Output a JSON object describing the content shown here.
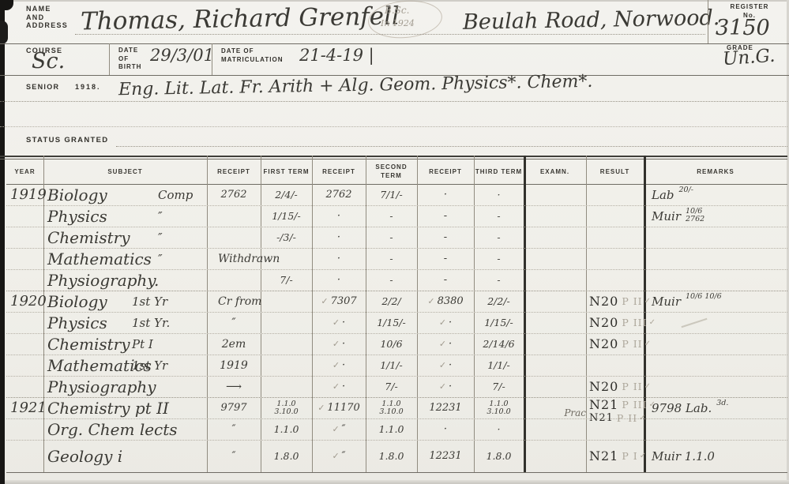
{
  "header": {
    "name_label_lines": [
      "NAME",
      "AND",
      "ADDRESS"
    ],
    "name": "Thomas, Richard Grenfell",
    "degree_note_line1": "B.Sc.",
    "degree_note_line2": "In 1924",
    "address": "Beulah Road, Norwood.",
    "register_label_line1": "REGISTER",
    "register_label_line2": "No.",
    "register_no": "3150",
    "course_label": "COURSE",
    "course": "Sc.",
    "dob_label_lines": [
      "DATE",
      "OF",
      "BIRTH"
    ],
    "dob": "29/3/01",
    "matric_label_lines": [
      "DATE OF",
      "MATRICULATION"
    ],
    "matric": "21-4-19 |",
    "grade_label": "GRADE",
    "grade": "Un.G."
  },
  "senior": {
    "label": "SENIOR",
    "year": "1918.",
    "subjects": "Eng. Lit. Lat. Fr. Arith + Alg. Geom. Physics*. Chem*."
  },
  "status": {
    "label": "STATUS GRANTED"
  },
  "table": {
    "headers": [
      "YEAR",
      "SUBJECT",
      "RECEIPT",
      "FIRST TERM",
      "RECEIPT",
      "SECOND TERM",
      "RECEIPT",
      "THIRD TERM",
      "EXAMN.",
      "RESULT",
      "REMARKS"
    ],
    "rows": [
      {
        "year": "1919",
        "subject": "Biology",
        "sub2": "Comp",
        "group": "y1919",
        "r1": "2762",
        "r1_pencil": false,
        "t1": "2/4/-",
        "t1b": "",
        "r2": "2762",
        "r2_check": false,
        "t2": "7/1/-",
        "t2b": "",
        "r3": "·",
        "r3_check": false,
        "t3": "·",
        "t3b": "",
        "exam2": "",
        "result": "",
        "rgrade": "",
        "rcheck": false,
        "result2": "",
        "rgrade2": "",
        "rcheck2": false,
        "remark": "Lab",
        "remark_sup": "20/-",
        "remark_sub": "",
        "remark_pencil": false
      },
      {
        "year": "",
        "subject": "Physics",
        "sub2": "″",
        "group": "y1919",
        "r1": "",
        "r1_pencil": false,
        "t1": "1/15/-",
        "t1b": "",
        "r2": "·",
        "r2_check": false,
        "t2": "-",
        "t2b": "",
        "r3": "-",
        "r3_check": false,
        "t3": "-",
        "t3b": "",
        "exam2": "",
        "result": "",
        "rgrade": "",
        "rcheck": false,
        "result2": "",
        "rgrade2": "",
        "rcheck2": false,
        "remark": "Muir",
        "remark_sup": "10/6",
        "remark_sub": "2762",
        "remark_pencil": false
      },
      {
        "year": "",
        "subject": "Chemistry",
        "sub2": "″",
        "group": "y1919",
        "r1": "",
        "r1_pencil": false,
        "t1": "-/3/-",
        "t1b": "",
        "r2": "·",
        "r2_check": false,
        "t2": "-",
        "t2b": "",
        "r3": "-",
        "r3_check": false,
        "t3": "-",
        "t3b": "",
        "exam2": "",
        "result": "",
        "rgrade": "",
        "rcheck": false,
        "result2": "",
        "rgrade2": "",
        "rcheck2": false,
        "remark": "",
        "remark_sup": "",
        "remark_sub": "",
        "remark_pencil": false
      },
      {
        "year": "",
        "subject": "Mathematics",
        "sub2": "″",
        "group": "y1919",
        "r1": "Withdrawn",
        "r1_pencil": true,
        "t1": "",
        "t1b": "",
        "r2": "·",
        "r2_check": false,
        "t2": "-",
        "t2b": "",
        "r3": "-",
        "r3_check": false,
        "t3": "-",
        "t3b": "",
        "exam2": "",
        "result": "",
        "rgrade": "",
        "rcheck": false,
        "result2": "",
        "rgrade2": "",
        "rcheck2": false,
        "remark": "",
        "remark_sup": "",
        "remark_sub": "",
        "remark_pencil": false
      },
      {
        "year": "",
        "subject": "Physiography.",
        "sub2": "",
        "group": "y1919",
        "r1": "",
        "r1_pencil": false,
        "t1": "7/-",
        "t1b": "",
        "r2": "·",
        "r2_check": false,
        "t2": "-",
        "t2b": "",
        "r3": "-",
        "r3_check": false,
        "t3": "-",
        "t3b": "",
        "exam2": "",
        "result": "",
        "rgrade": "",
        "rcheck": false,
        "result2": "",
        "rgrade2": "",
        "rcheck2": false,
        "remark": "",
        "remark_sup": "",
        "remark_sub": "",
        "remark_pencil": false
      },
      {
        "year": "1920",
        "subject": "Biology",
        "sub2": "1st Yr",
        "group": "y1920",
        "r1": "Cr from",
        "r1_pencil": true,
        "t1": "",
        "t1b": "",
        "r2": "7307",
        "r2_check": true,
        "t2": "2/2/",
        "t2b": "",
        "r3": "8380",
        "r3_check": true,
        "t3": "2/2/-",
        "t3b": "",
        "exam2": "",
        "result": "N20",
        "rgrade": "P II",
        "rcheck": true,
        "result2": "",
        "rgrade2": "",
        "rcheck2": false,
        "remark": "Muir",
        "remark_sup": "10/6 10/6",
        "remark_sub": "",
        "remark_pencil": false
      },
      {
        "year": "",
        "subject": "Physics",
        "sub2": "1st Yr.",
        "group": "y1920",
        "r1": "″",
        "r1_pencil": true,
        "t1": "",
        "t1b": "",
        "r2": "·",
        "r2_check": true,
        "t2": "1/15/-",
        "t2b": "",
        "r3": "·",
        "r3_check": true,
        "t3": "1/15/-",
        "t3b": "",
        "exam2": "",
        "result": "N20",
        "rgrade": "P III",
        "rcheck": true,
        "result2": "",
        "rgrade2": "",
        "rcheck2": false,
        "remark": "",
        "remark_sup": "",
        "remark_sub": "",
        "remark_pencil": false
      },
      {
        "year": "",
        "subject": "Chemistry",
        "sub2": "Pt I",
        "group": "y1920",
        "r1": "2em",
        "r1_pencil": true,
        "t1": "",
        "t1b": "",
        "r2": "·",
        "r2_check": true,
        "t2": "10/6",
        "t2b": "",
        "r3": "·",
        "r3_check": true,
        "t3": "2/14/6",
        "t3b": "",
        "exam2": "",
        "result": "N20",
        "rgrade": "P II",
        "rcheck": true,
        "result2": "",
        "rgrade2": "",
        "rcheck2": false,
        "remark": "",
        "remark_sup": "",
        "remark_sub": "",
        "remark_pencil": false
      },
      {
        "year": "",
        "subject": "Mathematics",
        "sub2": "1st Yr",
        "group": "y1920",
        "r1": "1919",
        "r1_pencil": true,
        "t1": "",
        "t1b": "",
        "r2": "·",
        "r2_check": true,
        "t2": "1/1/-",
        "t2b": "",
        "r3": "·",
        "r3_check": true,
        "t3": "1/1/-",
        "t3b": "",
        "exam2": "",
        "result": "",
        "rgrade": "",
        "rcheck": false,
        "result2": "",
        "rgrade2": "",
        "rcheck2": false,
        "remark": "",
        "remark_sup": "",
        "remark_sub": "",
        "remark_pencil": false
      },
      {
        "year": "",
        "subject": "Physiography",
        "sub2": "",
        "group": "y1920",
        "r1": "⟶",
        "r1_pencil": true,
        "t1": "",
        "t1b": "",
        "r2": "·",
        "r2_check": true,
        "t2": "7/-",
        "t2b": "",
        "r3": "·",
        "r3_check": true,
        "t3": "7/-",
        "t3b": "",
        "exam2": "",
        "result": "N20",
        "rgrade": "P II",
        "rcheck": true,
        "result2": "",
        "rgrade2": "",
        "rcheck2": false,
        "remark": "",
        "remark_sup": "",
        "remark_sub": "",
        "remark_pencil": false
      },
      {
        "year": "1921",
        "subject": "Chemistry pt II",
        "sub2": "",
        "group": "y1921",
        "r1": "9797",
        "r1_pencil": false,
        "t1": "1.1.0",
        "t1b": "3.10.0",
        "r2": "11170",
        "r2_check": true,
        "t2": "1.1.0",
        "t2b": "3.10.0",
        "r3": "12231",
        "r3_check": false,
        "t3": "1.1.0",
        "t3b": "3.10.0",
        "exam2": "Prac",
        "result": "N21",
        "rgrade": "P III",
        "rcheck": true,
        "result2": "N21",
        "rgrade2": "P II",
        "rcheck2": true,
        "remark": "9798 Lab.",
        "remark_sup": "3d.",
        "remark_sub": "",
        "remark_pencil": true
      },
      {
        "year": "",
        "subject": "Org. Chem lects",
        "sub2": "",
        "group": "y1921",
        "r1": "″",
        "r1_pencil": false,
        "t1": "1.1.0",
        "t1b": "",
        "r2": "″",
        "r2_check": true,
        "t2": "1.1.0",
        "t2b": "",
        "r3": "·",
        "r3_check": false,
        "t3": "·",
        "t3b": "",
        "exam2": "",
        "result": "",
        "rgrade": "",
        "rcheck": false,
        "result2": "",
        "rgrade2": "",
        "rcheck2": false,
        "remark": "",
        "remark_sup": "",
        "remark_sub": "",
        "remark_pencil": false
      },
      {
        "year": "",
        "subject": "Geology i",
        "sub2": "",
        "group": "y1921",
        "r1": "″",
        "r1_pencil": false,
        "t1": "1.8.0",
        "t1b": "",
        "r2": "″",
        "r2_check": true,
        "t2": "1.8.0",
        "t2b": "",
        "r3": "12231",
        "r3_check": false,
        "t3": "1.8.0",
        "t3b": "",
        "exam2": "",
        "result": "N21",
        "rgrade": "P I",
        "rcheck": true,
        "result2": "",
        "rgrade2": "",
        "rcheck2": false,
        "remark": "Muir 1.1.0",
        "remark_sup": "",
        "remark_sub": "",
        "remark_pencil": false
      }
    ]
  }
}
